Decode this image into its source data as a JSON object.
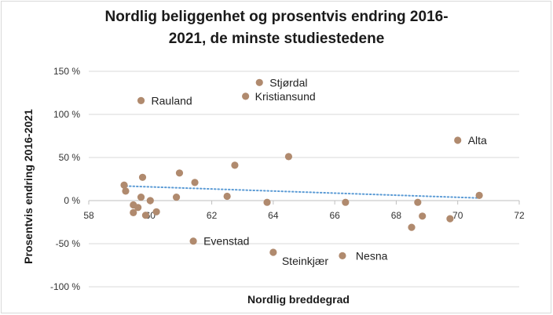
{
  "chart_data": {
    "type": "scatter",
    "title_lines": [
      "Nordlig beliggenhet og prosentvis endring 2016-",
      "2021, de minste studiestedene"
    ],
    "xlabel": "Nordlig breddegrad",
    "ylabel": "Prosentvis endring 2016-2021",
    "xlim": [
      58,
      72
    ],
    "ylim": [
      -100,
      150
    ],
    "xticks": [
      58,
      60,
      62,
      64,
      66,
      68,
      70,
      72
    ],
    "yticks": [
      -100,
      -50,
      0,
      50,
      100,
      150
    ],
    "ytick_labels": [
      "-100 %",
      "-50 %",
      "0 %",
      "50 %",
      "100 %",
      "150 %"
    ],
    "grid": "horizontal",
    "legend": "none",
    "point_color": "#b08a6e",
    "trendline": {
      "style": "dotted",
      "color": "#5b9bd5",
      "x": [
        59.1,
        70.7
      ],
      "y": [
        17,
        3
      ]
    },
    "points": [
      {
        "x": 63.55,
        "y": 137,
        "label": "Stjørdal"
      },
      {
        "x": 59.7,
        "y": 116,
        "label": "Rauland"
      },
      {
        "x": 63.1,
        "y": 121,
        "label": "Kristiansund"
      },
      {
        "x": 70.0,
        "y": 70,
        "label": "Alta"
      },
      {
        "x": 64.5,
        "y": 51,
        "label": ""
      },
      {
        "x": 62.75,
        "y": 41,
        "label": ""
      },
      {
        "x": 60.95,
        "y": 32,
        "label": ""
      },
      {
        "x": 61.45,
        "y": 21,
        "label": ""
      },
      {
        "x": 59.75,
        "y": 27,
        "label": ""
      },
      {
        "x": 59.15,
        "y": 18,
        "label": ""
      },
      {
        "x": 59.2,
        "y": 11,
        "label": ""
      },
      {
        "x": 59.7,
        "y": 4,
        "label": ""
      },
      {
        "x": 60.0,
        "y": 0,
        "label": ""
      },
      {
        "x": 60.85,
        "y": 4,
        "label": ""
      },
      {
        "x": 62.5,
        "y": 5,
        "label": ""
      },
      {
        "x": 59.45,
        "y": -5,
        "label": ""
      },
      {
        "x": 59.6,
        "y": -8,
        "label": ""
      },
      {
        "x": 59.45,
        "y": -14,
        "label": ""
      },
      {
        "x": 59.85,
        "y": -17,
        "label": ""
      },
      {
        "x": 60.2,
        "y": -13,
        "label": ""
      },
      {
        "x": 63.8,
        "y": -2,
        "label": ""
      },
      {
        "x": 66.35,
        "y": -2,
        "label": ""
      },
      {
        "x": 68.7,
        "y": -2,
        "label": ""
      },
      {
        "x": 68.85,
        "y": -18,
        "label": ""
      },
      {
        "x": 68.5,
        "y": -31,
        "label": ""
      },
      {
        "x": 69.75,
        "y": -21,
        "label": ""
      },
      {
        "x": 70.7,
        "y": 6,
        "label": ""
      },
      {
        "x": 61.4,
        "y": -47,
        "label": "Evenstad"
      },
      {
        "x": 64.0,
        "y": -60,
        "label": "Steinkjær"
      },
      {
        "x": 66.25,
        "y": -64,
        "label": "Nesna"
      }
    ]
  }
}
